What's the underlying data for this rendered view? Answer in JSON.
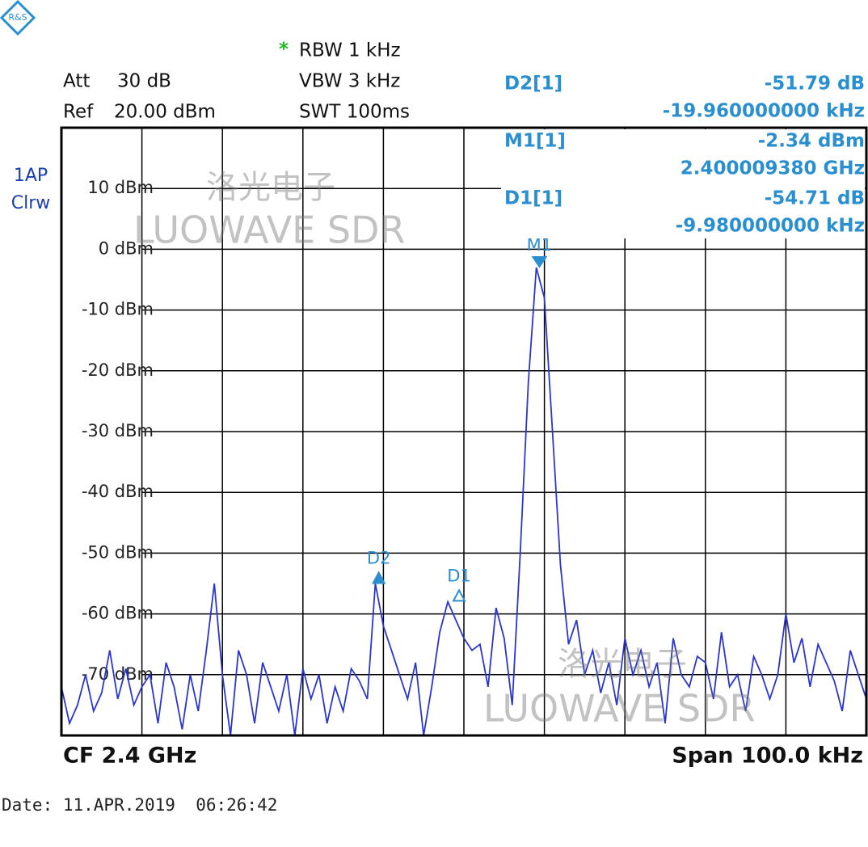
{
  "chart_data": {
    "type": "line",
    "logo": "R&S",
    "settings": {
      "att_label": "Att",
      "att": "30 dB",
      "ref_label": "Ref",
      "ref": "20.00 dBm",
      "star": "*",
      "rbw": "RBW 1 kHz",
      "vbw": "VBW 3 kHz",
      "swt": "SWT 100ms"
    },
    "trace_label": [
      "1AP",
      "Clrw"
    ],
    "readouts": [
      {
        "name": "D2[1]",
        "value": "-51.79 dB",
        "position": "-19.960000000 kHz"
      },
      {
        "name": "M1[1]",
        "value": "-2.34 dBm",
        "position": "2.400009380 GHz"
      },
      {
        "name": "D1[1]",
        "value": "-54.71 dB",
        "position": "-9.980000000 kHz"
      }
    ],
    "watermark": [
      "洛光电子",
      "LUOWAVE SDR"
    ],
    "center": "CF 2.4 GHz",
    "span": "Span 100.0 kHz",
    "date": "Date: 11.APR.2019  06:26:42",
    "ylim": [
      -80,
      20
    ],
    "yticks": [
      {
        "value": 10,
        "label": "10 dBm"
      },
      {
        "value": 0,
        "label": "0 dBm"
      },
      {
        "value": -10,
        "label": "-10 dBm"
      },
      {
        "value": -20,
        "label": "-20 dBm"
      },
      {
        "value": -30,
        "label": "-30 dBm"
      },
      {
        "value": -40,
        "label": "-40 dBm"
      },
      {
        "value": -50,
        "label": "-50 dBm"
      },
      {
        "value": -60,
        "label": "-60 dBm"
      },
      {
        "value": -70,
        "label": "-70 dBm"
      }
    ],
    "xlim": [
      -50,
      50
    ],
    "xticks": [
      -40,
      -30,
      -20,
      -10,
      0,
      10,
      20,
      30,
      40
    ],
    "grid": true,
    "color": "#2a35d0",
    "marker_color": "#2a8fd0",
    "x": [
      -50,
      -49,
      -48,
      -47,
      -46,
      -45,
      -44,
      -43,
      -42,
      -41,
      -40,
      -39,
      -38,
      -37,
      -36,
      -35,
      -34,
      -33,
      -32,
      -31,
      -30,
      -29,
      -28,
      -27,
      -26,
      -25,
      -24,
      -23,
      -22,
      -21,
      -20,
      -19,
      -18,
      -17,
      -16,
      -15,
      -14,
      -13,
      -12,
      -11,
      -10,
      -9,
      -8,
      -7,
      -6,
      -5,
      -4,
      -3,
      -2,
      -1,
      0,
      1,
      2,
      3,
      4,
      5,
      6,
      7,
      8,
      9,
      10,
      11,
      12,
      13,
      14,
      15,
      16,
      17,
      18,
      19,
      20,
      21,
      22,
      23,
      24,
      25,
      26,
      27,
      28,
      29,
      30,
      31,
      32,
      33,
      34,
      35,
      36,
      37,
      38,
      39,
      40,
      41,
      42,
      43,
      44,
      45,
      46,
      47,
      48,
      49,
      50
    ],
    "values": [
      -72,
      -78,
      -75,
      -70,
      -76,
      -73,
      -66,
      -74,
      -69,
      -75,
      -72,
      -70,
      -78,
      -68,
      -72,
      -79,
      -70,
      -76,
      -66,
      -55,
      -70,
      -80,
      -66,
      -70,
      -78,
      -68,
      -72,
      -76,
      -70,
      -80,
      -69,
      -74,
      -70,
      -78,
      -72,
      -76,
      -69,
      -71,
      -74,
      -55,
      -62,
      -66,
      -70,
      -74,
      -68,
      -80,
      -72,
      -63,
      -58,
      -61,
      -64,
      -66,
      -65,
      -72,
      -59,
      -64,
      -75,
      -50,
      -22,
      -3,
      -8,
      -30,
      -52,
      -65,
      -61,
      -70,
      -66,
      -73,
      -68,
      -75,
      -64,
      -70,
      -66,
      -72,
      -68,
      -78,
      -64,
      -70,
      -72,
      -67,
      -68,
      -74,
      -63,
      -72,
      -70,
      -76,
      -67,
      -70,
      -74,
      -70,
      -60,
      -68,
      -64,
      -72,
      -65,
      -68,
      -71,
      -76,
      -66,
      -70,
      -74
    ],
    "markers": [
      {
        "label": "M1",
        "x": 9.38,
        "y": -2.34,
        "shape": "down"
      },
      {
        "label": "D2",
        "x": -10.58,
        "y": -54.13,
        "shape": "up"
      },
      {
        "label": "D1",
        "x": -0.6,
        "y": -57.05,
        "shape": "up-open"
      }
    ]
  }
}
